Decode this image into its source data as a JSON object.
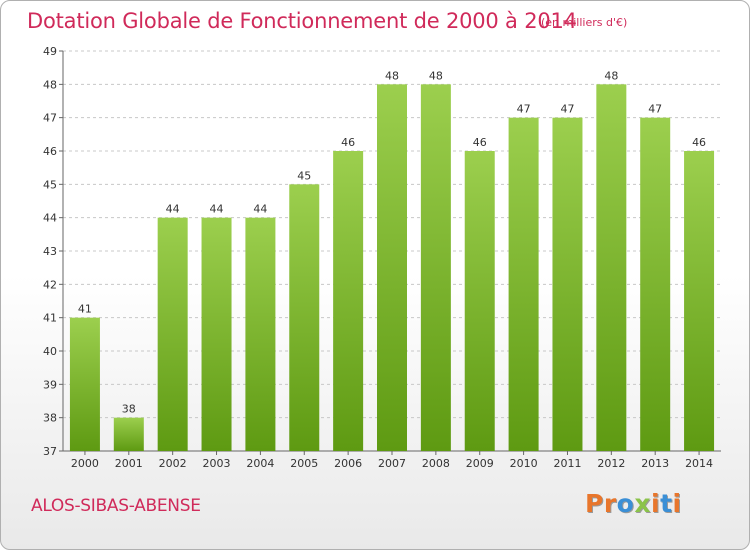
{
  "header": {
    "title": "Dotation Globale de Fonctionnement de 2000 à 2014",
    "subtitle": "(en milliers d'€)"
  },
  "footer": {
    "commune": "ALOS-SIBAS-ABENSE",
    "logo": {
      "letters": [
        "P",
        "r",
        "o",
        "x",
        "i",
        "t",
        "i"
      ],
      "colors": [
        "#e8762c",
        "#e8762c",
        "#3a8fd6",
        "#8bc34a",
        "#e8762c",
        "#3a8fd6",
        "#e8762c"
      ]
    }
  },
  "colors": {
    "bar_top": "#9ccf4e",
    "bar_bottom": "#5e9a12",
    "title": "#d02a5a",
    "grid": "#c8c8c8"
  },
  "chart_data": {
    "type": "bar",
    "title": "Dotation Globale de Fonctionnement de 2000 à 2014",
    "subtitle": "(en milliers d'€)",
    "categories": [
      "2000",
      "2001",
      "2002",
      "2003",
      "2004",
      "2005",
      "2006",
      "2007",
      "2008",
      "2009",
      "2010",
      "2011",
      "2012",
      "2013",
      "2014"
    ],
    "values": [
      41,
      38,
      44,
      44,
      44,
      45,
      46,
      48,
      48,
      46,
      47,
      47,
      48,
      47,
      46
    ],
    "ylim": [
      37,
      49
    ],
    "yticks": [
      37,
      38,
      39,
      40,
      41,
      42,
      43,
      44,
      45,
      46,
      47,
      48,
      49
    ],
    "grid": "horizontal dashed",
    "legend": "none",
    "data_labels": true
  }
}
